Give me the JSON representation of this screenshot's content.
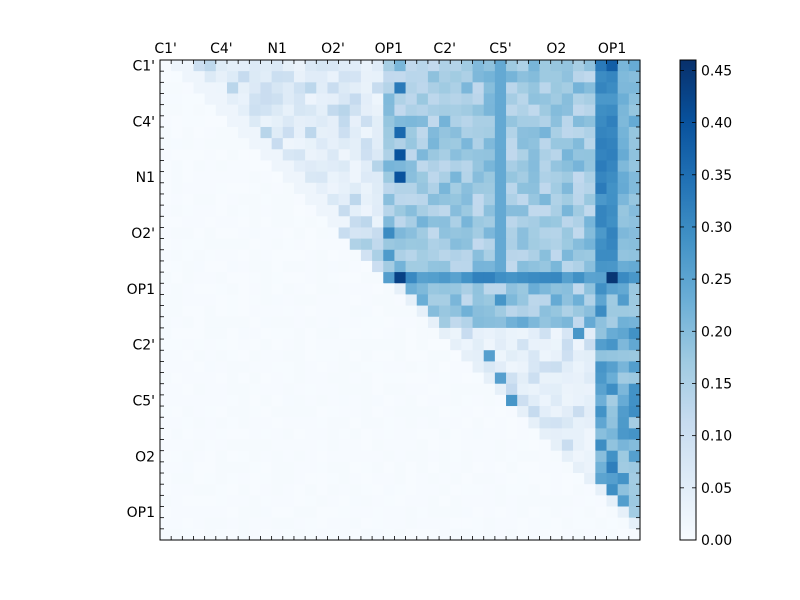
{
  "chart_data": {
    "type": "heatmap",
    "title": "",
    "xlabel": "",
    "ylabel": "",
    "size": 43,
    "x_tick_labels": [
      "C1'",
      "C4'",
      "N1",
      "O2'",
      "OP1",
      "C2'",
      "C5'",
      "O2",
      "OP1"
    ],
    "y_tick_labels": [
      "C1'",
      "C4'",
      "N1",
      "O2'",
      "OP1",
      "C2'",
      "C5'",
      "O2",
      "OP1"
    ],
    "tick_step": 5,
    "colorbar": {
      "ticks": [
        "0.00",
        "0.05",
        "0.10",
        "0.15",
        "0.20",
        "0.25",
        "0.30",
        "0.35",
        "0.40",
        "0.45"
      ],
      "min": 0,
      "max": 0.46
    },
    "colormap": "Blues",
    "grid": false,
    "note_values": "upper triangle contains estimated correlation-like values; lower triangle is ~0",
    "special_values": [
      {
        "row": 1,
        "col": 21,
        "value": 0.12
      },
      {
        "row": 0,
        "col": 40,
        "value": 0.38
      },
      {
        "row": 19,
        "col": 40,
        "value": 0.45
      },
      {
        "row": 19,
        "col": 21,
        "value": 0.43
      },
      {
        "row": 8,
        "col": 21,
        "value": 0.4
      },
      {
        "row": 10,
        "col": 21,
        "value": 0.4
      },
      {
        "row": 2,
        "col": 21,
        "value": 0.33
      },
      {
        "row": 6,
        "col": 21,
        "value": 0.36
      },
      {
        "row": 15,
        "col": 20,
        "value": 0.3
      },
      {
        "row": 17,
        "col": 20,
        "value": 0.27
      },
      {
        "row": 21,
        "col": 30,
        "value": 0.28
      },
      {
        "row": 30,
        "col": 31,
        "value": 0.28
      },
      {
        "row": 28,
        "col": 30,
        "value": 0.26
      },
      {
        "row": 26,
        "col": 29,
        "value": 0.26
      },
      {
        "row": 24,
        "col": 37,
        "value": 0.28
      },
      {
        "row": 36,
        "col": 40,
        "value": 0.32
      }
    ]
  }
}
